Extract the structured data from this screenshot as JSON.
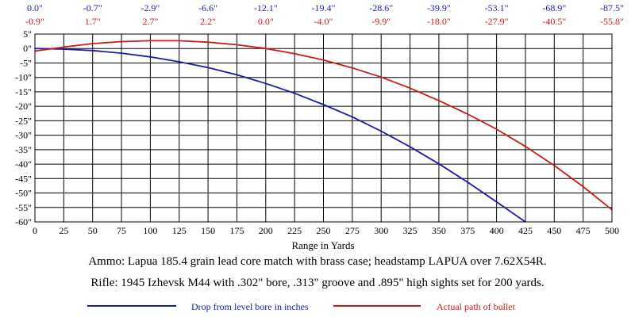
{
  "chart_data": {
    "type": "line",
    "xlabel": "Range in Yards",
    "ylabel": "",
    "xlim": [
      0,
      500
    ],
    "ylim": [
      -60,
      5
    ],
    "x_ticks": [
      0,
      25,
      50,
      75,
      100,
      125,
      150,
      175,
      200,
      225,
      250,
      275,
      300,
      325,
      350,
      375,
      400,
      425,
      450,
      475,
      500
    ],
    "y_ticks": [
      5,
      0,
      -5,
      -10,
      -15,
      -20,
      -25,
      -30,
      -35,
      -40,
      -45,
      -50,
      -55,
      -60
    ],
    "y_tick_labels": [
      "5\"",
      "0\"",
      "-5\"",
      "-10\"",
      "-15\"",
      "-20\"",
      "-25\"",
      "-30\"",
      "-35\"",
      "-40\"",
      "-45\"",
      "-50\"",
      "-55\"",
      "-60\""
    ],
    "grid": true,
    "top_labels_drop": [
      "0.0\"",
      "-0.7\"",
      "-2.9\"",
      "-6.6\"",
      "-12.1\"",
      "-19.4\"",
      "-28.6\"",
      "-39.9\"",
      "-53.1\"",
      "-68.9\"",
      "-87.5\""
    ],
    "top_labels_path": [
      "-0.9\"",
      "1.7\"",
      "2.7\"",
      "2.2\"",
      "0.0\"",
      "-4.0\"",
      "-9.9\"",
      "-18.0\"",
      "-27.9\"",
      "-40.5\"",
      "-55.8\""
    ],
    "top_label_x": [
      0,
      50,
      100,
      150,
      200,
      250,
      300,
      350,
      400,
      450,
      500
    ],
    "series": [
      {
        "name": "Drop from level bore in inches",
        "color": "#1a1aa6",
        "x": [
          0,
          25,
          50,
          75,
          100,
          125,
          150,
          175,
          200,
          225,
          250,
          275,
          300,
          325,
          350,
          375,
          400,
          425
        ],
        "y": [
          0,
          -0.2,
          -0.7,
          -1.6,
          -2.9,
          -4.6,
          -6.6,
          -9.1,
          -12.1,
          -15.5,
          -19.4,
          -23.7,
          -28.6,
          -34,
          -39.9,
          -46.3,
          -53.1,
          -60
        ]
      },
      {
        "name": "Actual path of bullet",
        "color": "#cc1a1a",
        "x": [
          0,
          25,
          50,
          75,
          100,
          125,
          150,
          175,
          200,
          225,
          250,
          275,
          300,
          325,
          350,
          375,
          400,
          425,
          450,
          475,
          500
        ],
        "y": [
          -0.9,
          0.5,
          1.7,
          2.4,
          2.7,
          2.7,
          2.2,
          1.3,
          0,
          -1.8,
          -4,
          -6.7,
          -9.9,
          -13.7,
          -18,
          -22.7,
          -27.9,
          -33.9,
          -40.5,
          -47.8,
          -55.8
        ]
      }
    ]
  },
  "captions": {
    "ammo": "Ammo:  Lapua 185.4 grain lead core match with brass case; headstamp LAPUA over 7.62X54R.",
    "rifle": "Rifle:  1945 Izhevsk M44 with .302\" bore, .313\" groove and .895\" high sights set for 200 yards."
  }
}
